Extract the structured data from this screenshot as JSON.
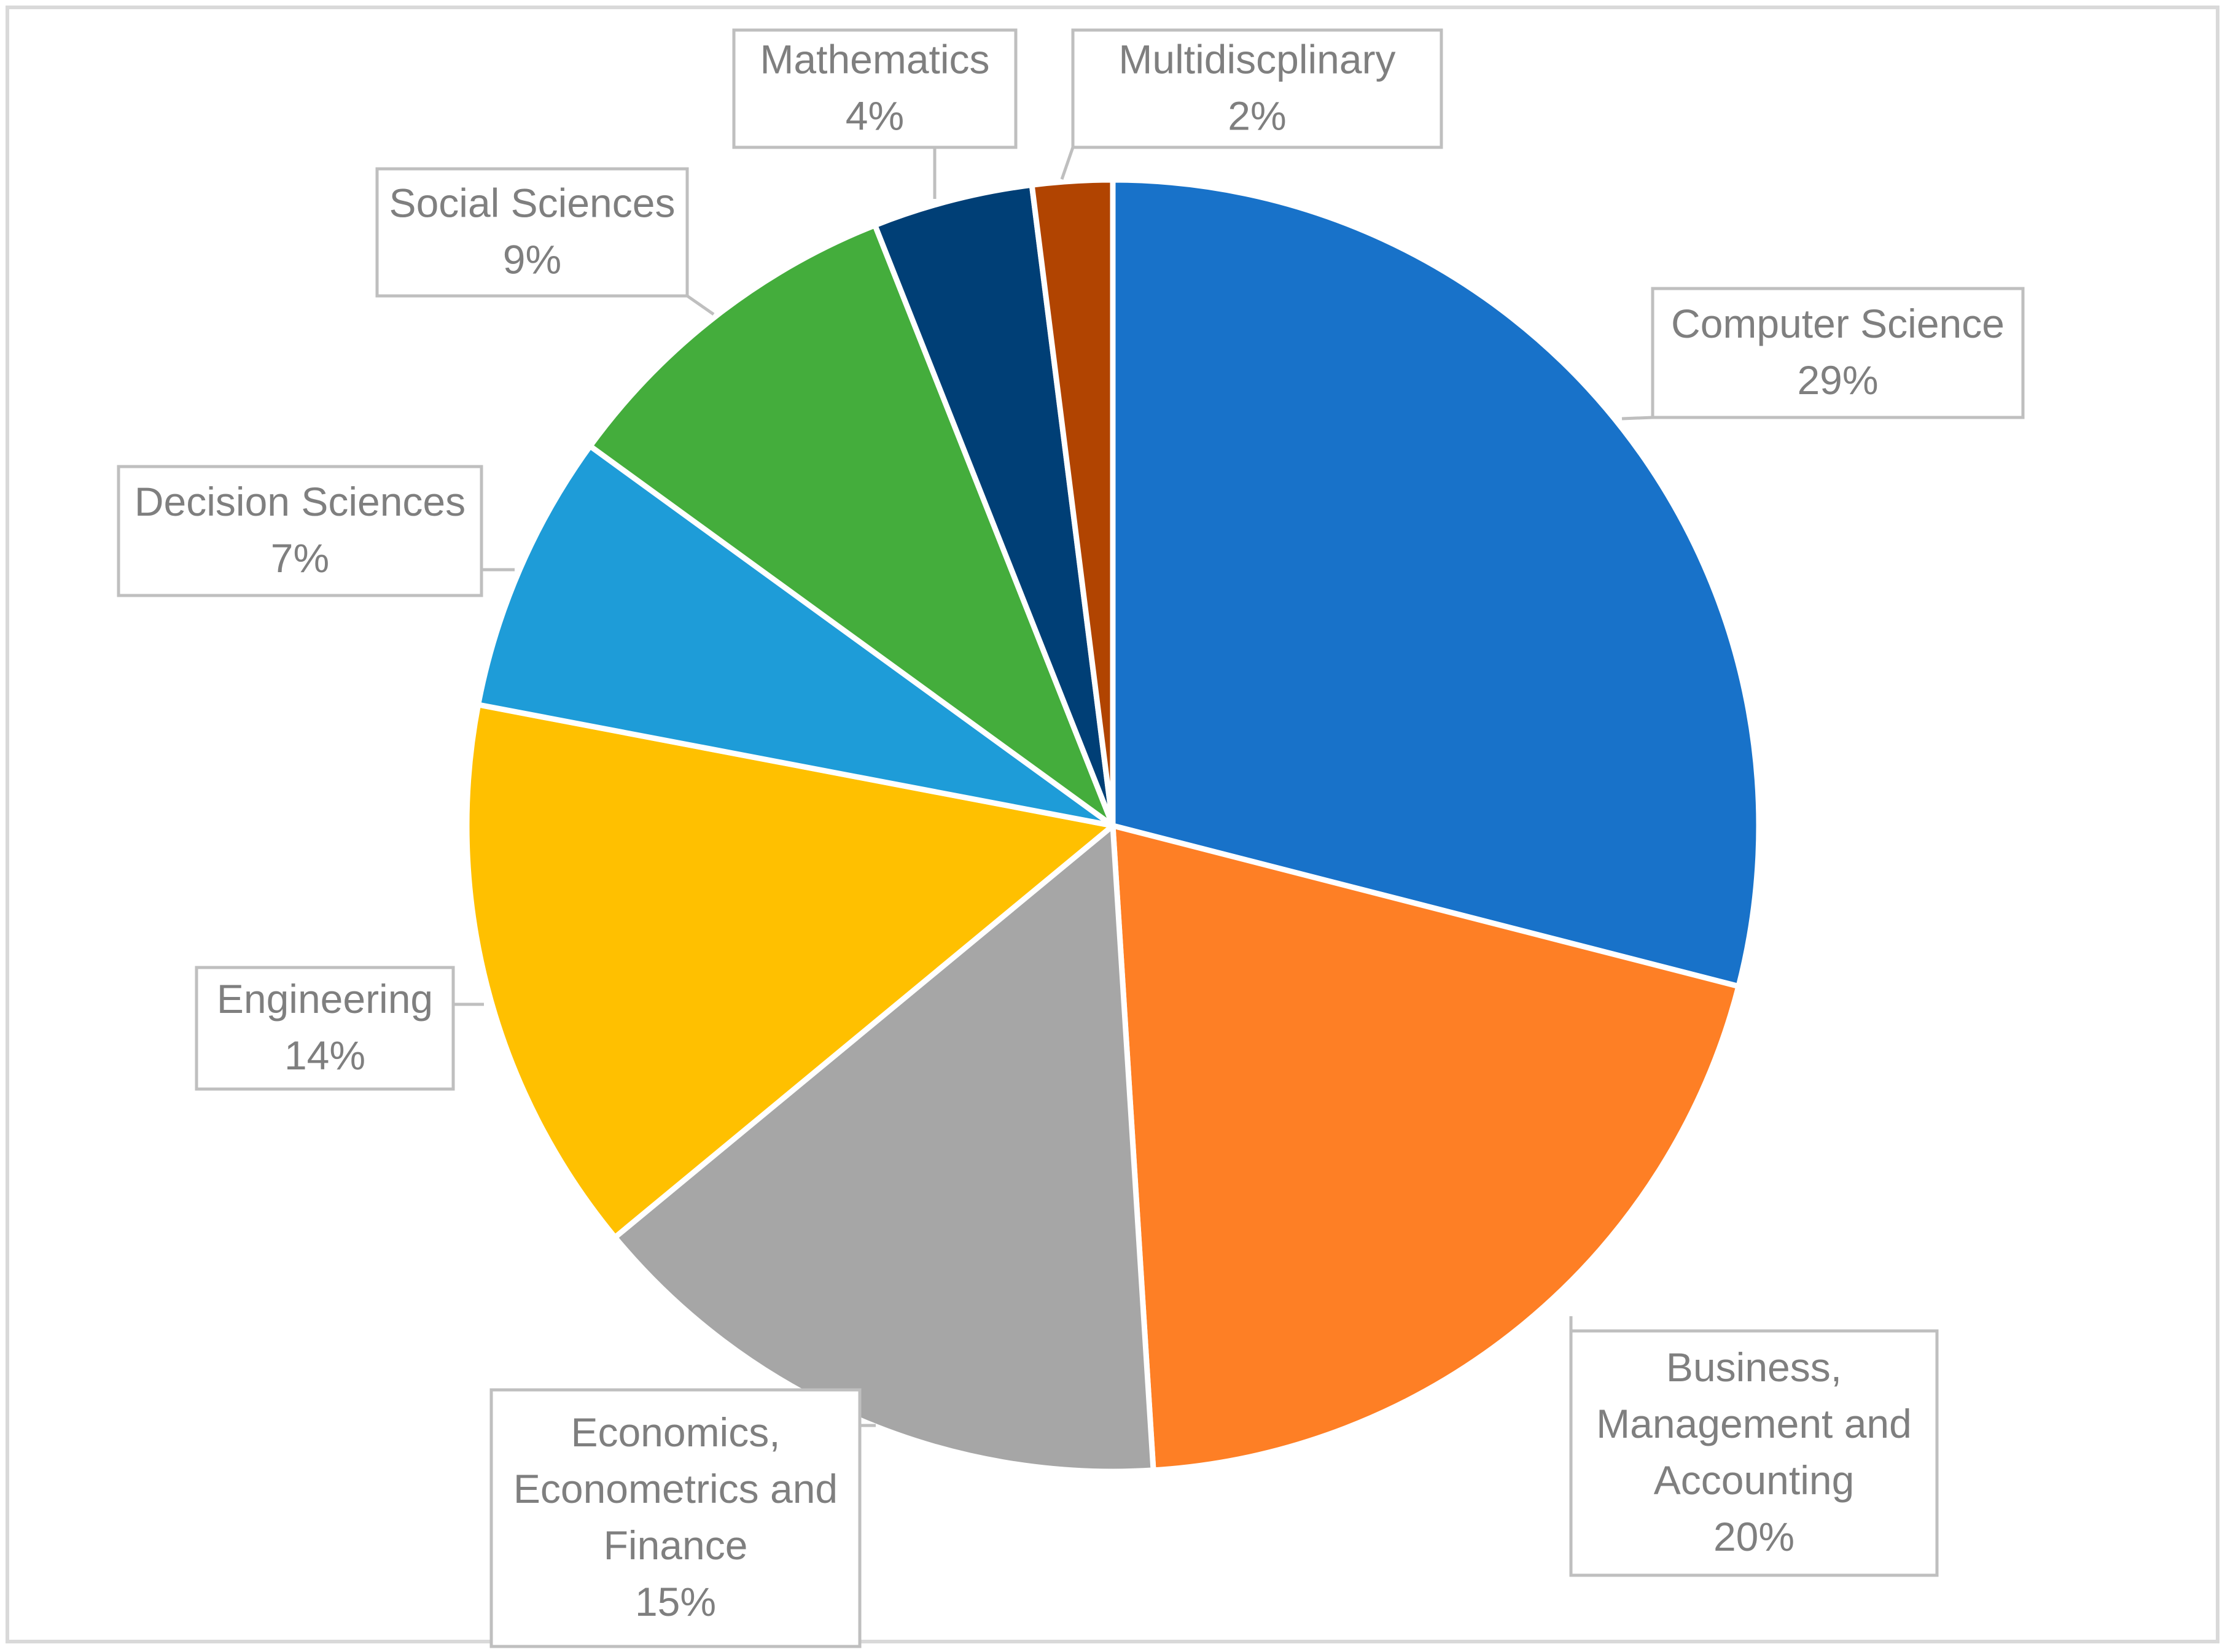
{
  "chart_data": {
    "type": "pie",
    "title": "",
    "legend": "none",
    "data_labels": "category name and percentage in callouts",
    "series": [
      {
        "name": "",
        "values": [
          29,
          20,
          15,
          14,
          7,
          9,
          4,
          2
        ]
      }
    ],
    "slices": [
      {
        "label_lines": [
          "Computer Science"
        ],
        "value": 29,
        "percent_label": "29%",
        "color": "#1872C9"
      },
      {
        "label_lines": [
          "Business,",
          "Management and",
          "Accounting"
        ],
        "value": 20,
        "percent_label": "20%",
        "color": "#FE7F25"
      },
      {
        "label_lines": [
          "Economics,",
          "Econometrics and",
          "Finance"
        ],
        "value": 15,
        "percent_label": "15%",
        "color": "#A6A6A6"
      },
      {
        "label_lines": [
          "Engineering"
        ],
        "value": 14,
        "percent_label": "14%",
        "color": "#FFC000"
      },
      {
        "label_lines": [
          "Decision Sciences"
        ],
        "value": 7,
        "percent_label": "7%",
        "color": "#1E9CD8"
      },
      {
        "label_lines": [
          "Social Sciences"
        ],
        "value": 9,
        "percent_label": "9%",
        "color": "#44AD3C"
      },
      {
        "label_lines": [
          "Mathematics"
        ],
        "value": 4,
        "percent_label": "4%",
        "color": "#003F76"
      },
      {
        "label_lines": [
          "Multidiscplinary"
        ],
        "value": 2,
        "percent_label": "2%",
        "color": "#B14401"
      }
    ],
    "colors": {
      "label_text": "#7F7F7F",
      "callout_border": "#BFBFBF",
      "slice_border": "#FFFFFF",
      "frame_border": "#D9D9D9"
    }
  }
}
